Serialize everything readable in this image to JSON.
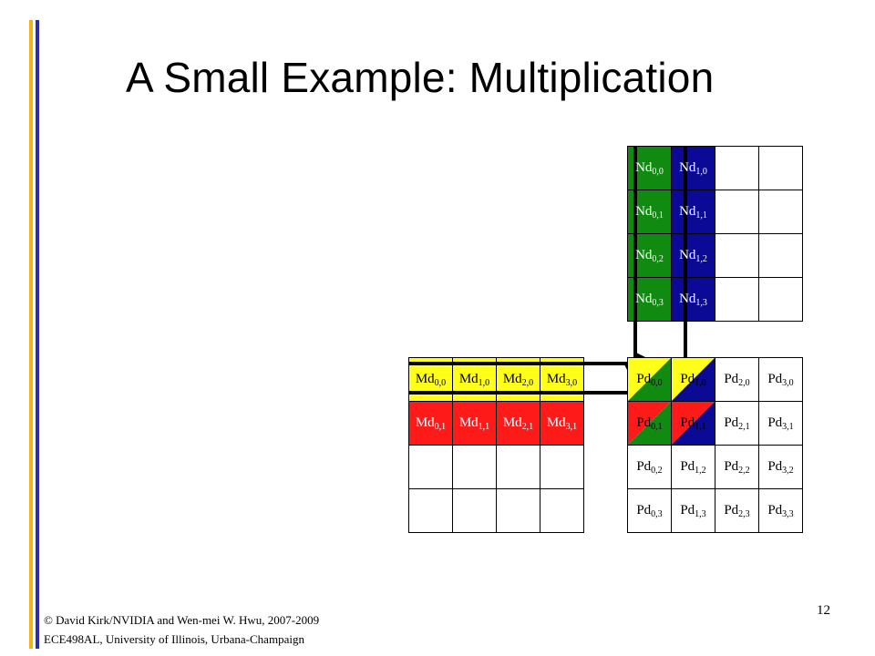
{
  "title": "A Small Example: Multiplication",
  "colors": {
    "bar_yellow": "#f2b21c",
    "bar_blue": "#2c2ca8",
    "green": "#118a11",
    "blue": "#0a0a96",
    "yellow": "#ffff1a",
    "red": "#ff1a1a"
  },
  "nd": {
    "rows": [
      [
        {
          "base": "Nd",
          "sub": "0,0",
          "color": "green"
        },
        {
          "base": "Nd",
          "sub": "1,0",
          "color": "blue"
        },
        {
          "base": "",
          "sub": "",
          "color": ""
        },
        {
          "base": "",
          "sub": "",
          "color": ""
        }
      ],
      [
        {
          "base": "Nd",
          "sub": "0,1",
          "color": "green"
        },
        {
          "base": "Nd",
          "sub": "1,1",
          "color": "blue"
        },
        {
          "base": "",
          "sub": "",
          "color": ""
        },
        {
          "base": "",
          "sub": "",
          "color": ""
        }
      ],
      [
        {
          "base": "Nd",
          "sub": "0,2",
          "color": "green"
        },
        {
          "base": "Nd",
          "sub": "1,2",
          "color": "blue"
        },
        {
          "base": "",
          "sub": "",
          "color": ""
        },
        {
          "base": "",
          "sub": "",
          "color": ""
        }
      ],
      [
        {
          "base": "Nd",
          "sub": "0,3",
          "color": "green"
        },
        {
          "base": "Nd",
          "sub": "1,3",
          "color": "blue"
        },
        {
          "base": "",
          "sub": "",
          "color": ""
        },
        {
          "base": "",
          "sub": "",
          "color": ""
        }
      ]
    ]
  },
  "md": {
    "rows": [
      [
        {
          "base": "Md",
          "sub": "0,0",
          "color": "yellow"
        },
        {
          "base": "Md",
          "sub": "1,0",
          "color": "yellow"
        },
        {
          "base": "Md",
          "sub": "2,0",
          "color": "yellow"
        },
        {
          "base": "Md",
          "sub": "3,0",
          "color": "yellow"
        }
      ],
      [
        {
          "base": "Md",
          "sub": "0,1",
          "color": "red"
        },
        {
          "base": "Md",
          "sub": "1,1",
          "color": "red"
        },
        {
          "base": "Md",
          "sub": "2,1",
          "color": "red"
        },
        {
          "base": "Md",
          "sub": "3,1",
          "color": "red"
        }
      ],
      [
        {
          "base": "",
          "sub": "",
          "color": ""
        },
        {
          "base": "",
          "sub": "",
          "color": ""
        },
        {
          "base": "",
          "sub": "",
          "color": ""
        },
        {
          "base": "",
          "sub": "",
          "color": ""
        }
      ],
      [
        {
          "base": "",
          "sub": "",
          "color": ""
        },
        {
          "base": "",
          "sub": "",
          "color": ""
        },
        {
          "base": "",
          "sub": "",
          "color": ""
        },
        {
          "base": "",
          "sub": "",
          "color": ""
        }
      ]
    ]
  },
  "pd": {
    "rows": [
      [
        {
          "base": "Pd",
          "sub": "0,0",
          "split": [
            "yellow",
            "green"
          ]
        },
        {
          "base": "Pd",
          "sub": "1,0",
          "split": [
            "yellow",
            "blue"
          ]
        },
        {
          "base": "Pd",
          "sub": "2,0"
        },
        {
          "base": "Pd",
          "sub": "3,0"
        }
      ],
      [
        {
          "base": "Pd",
          "sub": "0,1",
          "split": [
            "red",
            "green"
          ]
        },
        {
          "base": "Pd",
          "sub": "1,1",
          "split": [
            "red",
            "blue"
          ]
        },
        {
          "base": "Pd",
          "sub": "2,1"
        },
        {
          "base": "Pd",
          "sub": "3,1"
        }
      ],
      [
        {
          "base": "Pd",
          "sub": "0,2"
        },
        {
          "base": "Pd",
          "sub": "1,2"
        },
        {
          "base": "Pd",
          "sub": "2,2"
        },
        {
          "base": "Pd",
          "sub": "3,2"
        }
      ],
      [
        {
          "base": "Pd",
          "sub": "0,3"
        },
        {
          "base": "Pd",
          "sub": "1,3"
        },
        {
          "base": "Pd",
          "sub": "2,3"
        },
        {
          "base": "Pd",
          "sub": "3,3"
        }
      ]
    ]
  },
  "footer": {
    "line1": "© David Kirk/NVIDIA and Wen-mei W. Hwu, 2007-2009",
    "line2": "ECE498AL, University of Illinois, Urbana-Champaign"
  },
  "page_number": "12"
}
